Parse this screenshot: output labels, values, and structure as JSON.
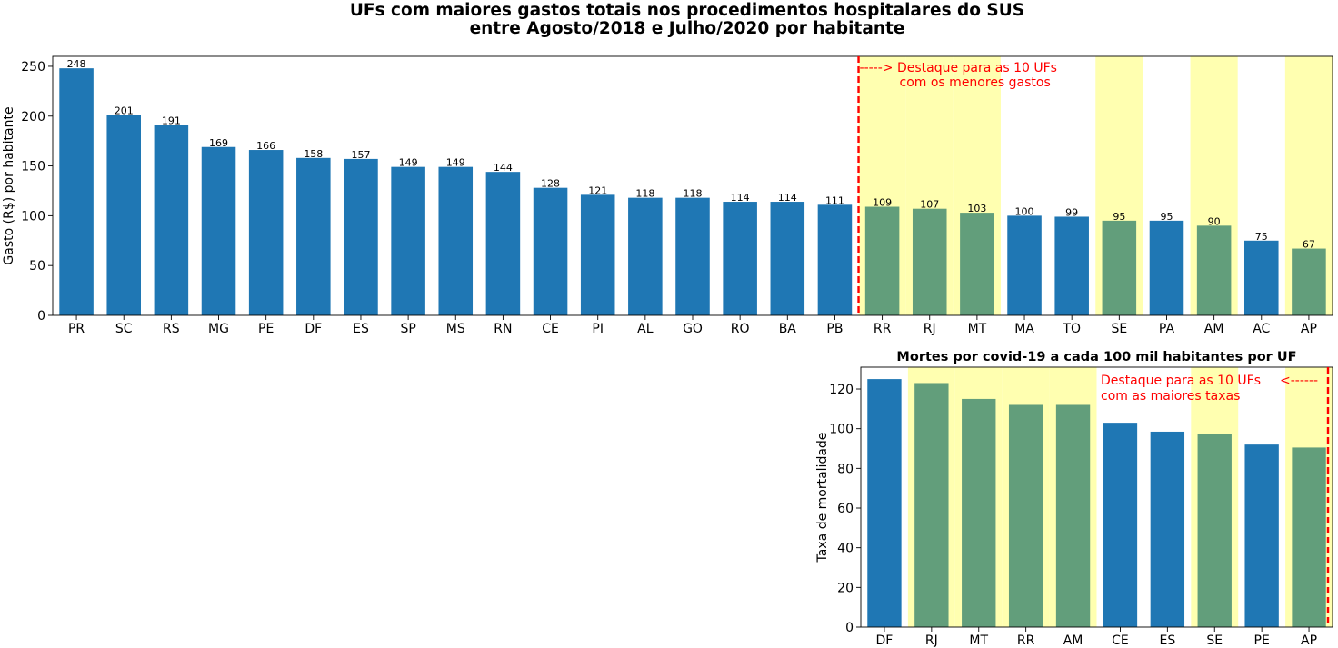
{
  "figure": {
    "title_line1": "UFs com maiores gastos totais nos procedimentos hospitalares do SUS",
    "title_line2": "entre Agosto/2018 e Julho/2020 por habitante"
  },
  "colors": {
    "bar_default": "#1f77b4",
    "bar_highlight": "#629e7b",
    "band": "#ffffb0",
    "annotation": "#ff0000"
  },
  "chart_data": [
    {
      "type": "bar",
      "title": "",
      "xlabel": "",
      "ylabel": "Gasto (R$) por habitante",
      "ylim": [
        0,
        260
      ],
      "yticks": [
        0,
        50,
        100,
        150,
        200,
        250
      ],
      "categories": [
        "PR",
        "SC",
        "RS",
        "MG",
        "PE",
        "DF",
        "ES",
        "SP",
        "MS",
        "RN",
        "CE",
        "PI",
        "AL",
        "GO",
        "RO",
        "BA",
        "PB",
        "RR",
        "RJ",
        "MT",
        "MA",
        "TO",
        "SE",
        "PA",
        "AM",
        "AC",
        "AP"
      ],
      "values": [
        248,
        201,
        191,
        169,
        166,
        158,
        157,
        149,
        149,
        144,
        128,
        121,
        118,
        118,
        114,
        114,
        111,
        109,
        107,
        103,
        100,
        99,
        95,
        95,
        90,
        75,
        67
      ],
      "highlighted": [
        "RR",
        "RJ",
        "MT",
        "SE",
        "AM",
        "AP"
      ],
      "shaded": [
        "RR",
        "RJ",
        "MT",
        "SE",
        "AM",
        "AP"
      ],
      "data_labels": true,
      "grid": false,
      "annotation": {
        "line1": "-----> Destaque para as 10 UFs",
        "line2": "com os menores gastos"
      }
    },
    {
      "type": "bar",
      "title": "Mortes por covid-19 a cada 100 mil habitantes por UF",
      "xlabel": "",
      "ylabel": "Taxa de mortalidade",
      "ylim": [
        0,
        131
      ],
      "yticks": [
        0,
        20,
        40,
        60,
        80,
        100,
        120
      ],
      "categories": [
        "DF",
        "RJ",
        "MT",
        "RR",
        "AM",
        "CE",
        "ES",
        "SE",
        "PE",
        "AP"
      ],
      "values": [
        125,
        123,
        115,
        112,
        112,
        103,
        98.5,
        97.5,
        92,
        90.5
      ],
      "highlighted": [
        "RJ",
        "MT",
        "RR",
        "AM",
        "SE",
        "AP"
      ],
      "shaded": [
        "RJ",
        "MT",
        "RR",
        "AM",
        "SE",
        "AP"
      ],
      "data_labels": false,
      "grid": false,
      "annotation": {
        "line1": "Destaque para as 10 UFs",
        "line2": "com as maiores taxas",
        "arrow": "<------"
      }
    }
  ]
}
